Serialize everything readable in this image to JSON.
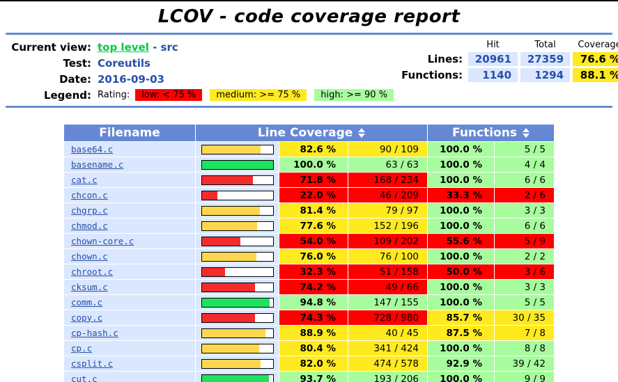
{
  "page": {
    "title": "LCOV - code coverage report"
  },
  "header": {
    "current_view": {
      "label": "Current view:",
      "link": "top level",
      "separator": " - ",
      "current": "src"
    },
    "test": {
      "label": "Test:",
      "value": "Coreutils"
    },
    "date": {
      "label": "Date:",
      "value": "2016-09-03"
    },
    "legend": {
      "label": "Legend:",
      "rating_label": "Rating:",
      "items": [
        {
          "label": "low: < 75 %",
          "class": "lo",
          "color": "#FF0000"
        },
        {
          "label": "medium: >= 75 %",
          "class": "med",
          "color": "#FFEA20"
        },
        {
          "label": "high: >= 90 %",
          "class": "hi",
          "color": "#A7FC9D"
        }
      ]
    },
    "summary": {
      "col_headers": [
        "Hit",
        "Total",
        "Coverage"
      ],
      "lines": {
        "label": "Lines:",
        "hit": "20961",
        "total": "27359",
        "coverage": "76.6 %"
      },
      "functions": {
        "label": "Functions:",
        "hit": "1140",
        "total": "1294",
        "coverage": "88.1 %"
      }
    }
  },
  "table": {
    "headers": {
      "filename": "Filename",
      "line_coverage": "Line Coverage",
      "functions": "Functions"
    },
    "rows": [
      {
        "filename": "base64.c",
        "line_pct": "82.6 %",
        "line_pct_num": 82.6,
        "line_ratio": "90 / 109",
        "line_class": "med",
        "func_pct": "100.0 %",
        "func_ratio": "5 / 5",
        "func_class": "hi"
      },
      {
        "filename": "basename.c",
        "line_pct": "100.0 %",
        "line_pct_num": 100.0,
        "line_ratio": "63 / 63",
        "line_class": "hi",
        "func_pct": "100.0 %",
        "func_ratio": "4 / 4",
        "func_class": "hi"
      },
      {
        "filename": "cat.c",
        "line_pct": "71.8 %",
        "line_pct_num": 71.8,
        "line_ratio": "168 / 234",
        "line_class": "lo",
        "func_pct": "100.0 %",
        "func_ratio": "6 / 6",
        "func_class": "hi"
      },
      {
        "filename": "chcon.c",
        "line_pct": "22.0 %",
        "line_pct_num": 22.0,
        "line_ratio": "46 / 209",
        "line_class": "lo",
        "func_pct": "33.3 %",
        "func_ratio": "2 / 6",
        "func_class": "lo"
      },
      {
        "filename": "chgrp.c",
        "line_pct": "81.4 %",
        "line_pct_num": 81.4,
        "line_ratio": "79 / 97",
        "line_class": "med",
        "func_pct": "100.0 %",
        "func_ratio": "3 / 3",
        "func_class": "hi"
      },
      {
        "filename": "chmod.c",
        "line_pct": "77.6 %",
        "line_pct_num": 77.6,
        "line_ratio": "152 / 196",
        "line_class": "med",
        "func_pct": "100.0 %",
        "func_ratio": "6 / 6",
        "func_class": "hi"
      },
      {
        "filename": "chown-core.c",
        "line_pct": "54.0 %",
        "line_pct_num": 54.0,
        "line_ratio": "109 / 202",
        "line_class": "lo",
        "func_pct": "55.6 %",
        "func_ratio": "5 / 9",
        "func_class": "lo"
      },
      {
        "filename": "chown.c",
        "line_pct": "76.0 %",
        "line_pct_num": 76.0,
        "line_ratio": "76 / 100",
        "line_class": "med",
        "func_pct": "100.0 %",
        "func_ratio": "2 / 2",
        "func_class": "hi"
      },
      {
        "filename": "chroot.c",
        "line_pct": "32.3 %",
        "line_pct_num": 32.3,
        "line_ratio": "51 / 158",
        "line_class": "lo",
        "func_pct": "50.0 %",
        "func_ratio": "3 / 6",
        "func_class": "lo"
      },
      {
        "filename": "cksum.c",
        "line_pct": "74.2 %",
        "line_pct_num": 74.2,
        "line_ratio": "49 / 66",
        "line_class": "lo",
        "func_pct": "100.0 %",
        "func_ratio": "3 / 3",
        "func_class": "hi"
      },
      {
        "filename": "comm.c",
        "line_pct": "94.8 %",
        "line_pct_num": 94.8,
        "line_ratio": "147 / 155",
        "line_class": "hi",
        "func_pct": "100.0 %",
        "func_ratio": "5 / 5",
        "func_class": "hi"
      },
      {
        "filename": "copy.c",
        "line_pct": "74.3 %",
        "line_pct_num": 74.3,
        "line_ratio": "728 / 980",
        "line_class": "lo",
        "func_pct": "85.7 %",
        "func_ratio": "30 / 35",
        "func_class": "med"
      },
      {
        "filename": "cp-hash.c",
        "line_pct": "88.9 %",
        "line_pct_num": 88.9,
        "line_ratio": "40 / 45",
        "line_class": "med",
        "func_pct": "87.5 %",
        "func_ratio": "7 / 8",
        "func_class": "med"
      },
      {
        "filename": "cp.c",
        "line_pct": "80.4 %",
        "line_pct_num": 80.4,
        "line_ratio": "341 / 424",
        "line_class": "med",
        "func_pct": "100.0 %",
        "func_ratio": "8 / 8",
        "func_class": "hi"
      },
      {
        "filename": "csplit.c",
        "line_pct": "82.0 %",
        "line_pct_num": 82.0,
        "line_ratio": "474 / 578",
        "line_class": "med",
        "func_pct": "92.9 %",
        "func_ratio": "39 / 42",
        "func_class": "hi"
      },
      {
        "filename": "cut.c",
        "line_pct": "93.7 %",
        "line_pct_num": 93.7,
        "line_ratio": "193 / 206",
        "line_class": "hi",
        "func_pct": "100.0 %",
        "func_ratio": "9 / 9",
        "func_class": "hi"
      }
    ]
  },
  "colors": {
    "table_head": "#6688D4",
    "file_cell": "#DAE7FE",
    "low": "#FF0000",
    "medium": "#FFEA20",
    "high": "#A7FC9D",
    "bar_low": "#F22C2C",
    "bar_medium": "#FDD84E",
    "bar_high": "#1FE35E",
    "link_blue": "#284FA8",
    "link_visited_green": "#00CB40"
  }
}
